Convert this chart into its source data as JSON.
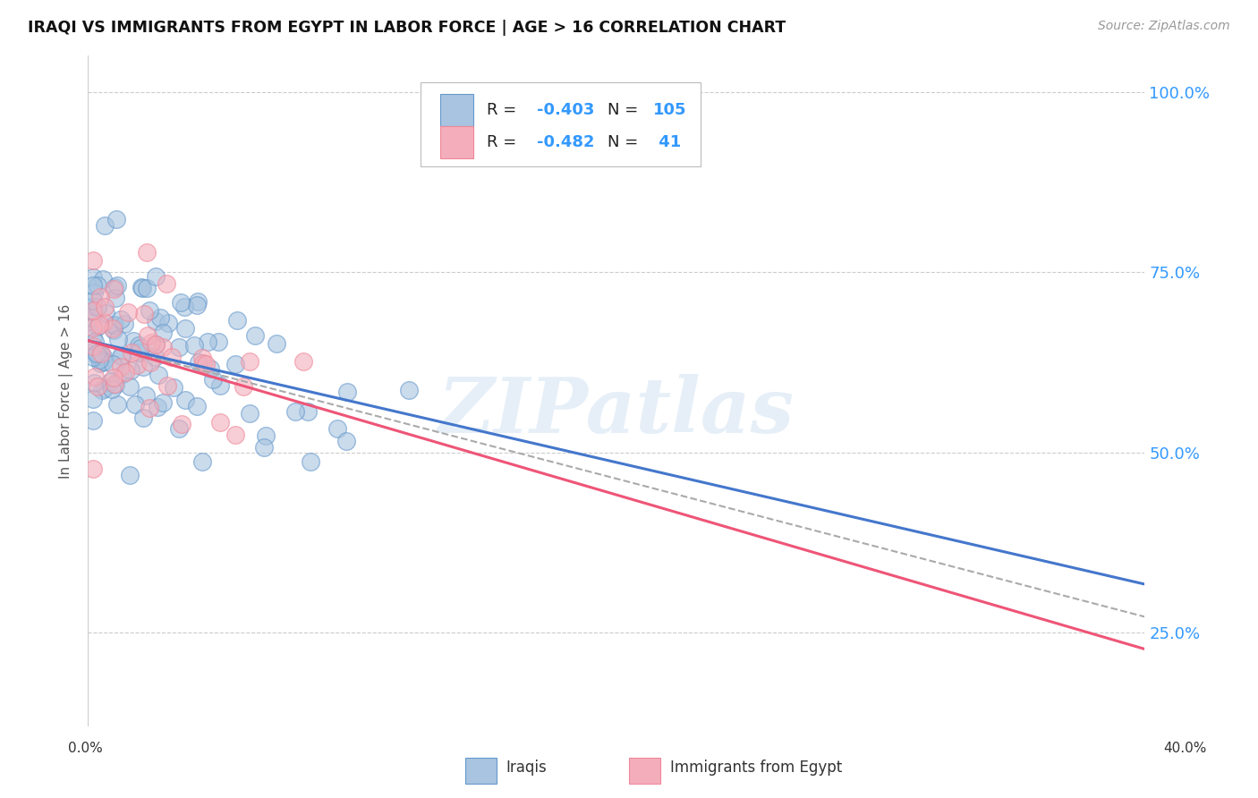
{
  "title": "IRAQI VS IMMIGRANTS FROM EGYPT IN LABOR FORCE | AGE > 16 CORRELATION CHART",
  "source": "Source: ZipAtlas.com",
  "ylabel": "In Labor Force | Age > 16",
  "yticks": [
    0.25,
    0.5,
    0.75,
    1.0
  ],
  "ytick_labels": [
    "25.0%",
    "50.0%",
    "75.0%",
    "100.0%"
  ],
  "xlim": [
    0.0,
    0.4
  ],
  "ylim": [
    0.12,
    1.05
  ],
  "blue_R": -0.403,
  "blue_N": 105,
  "pink_R": -0.482,
  "pink_N": 41,
  "blue_fill": "#A8C4E0",
  "pink_fill": "#F4AEBB",
  "blue_edge": "#6699CC",
  "pink_edge": "#EE8899",
  "blue_line": "#4477CC",
  "pink_line": "#EE5577",
  "dash_line": "#AAAAAA",
  "legend_label_blue": "Iraqis",
  "legend_label_pink": "Immigrants from Egypt",
  "watermark": "ZIPatlas",
  "blue_intercept": 0.655,
  "blue_slope": -0.845,
  "pink_intercept": 0.655,
  "pink_slope": -1.07,
  "dash_intercept": 0.655,
  "dash_slope": -0.958
}
